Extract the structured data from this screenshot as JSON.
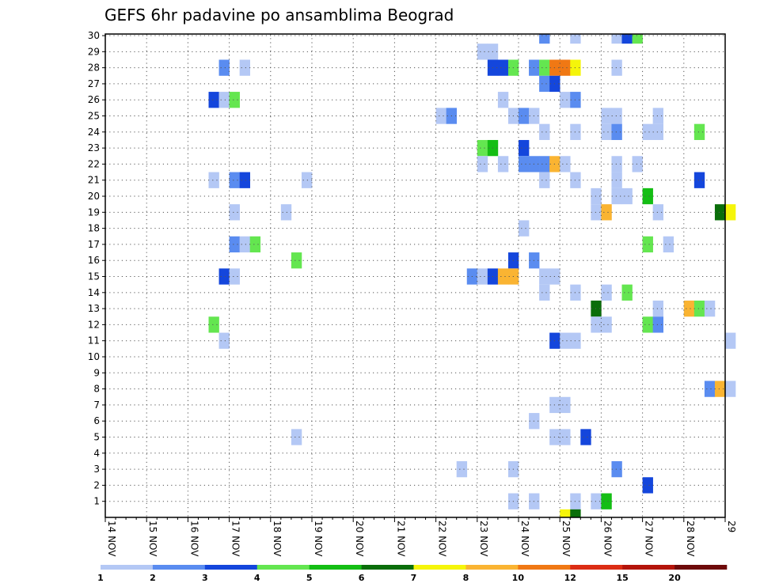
{
  "chart_data": {
    "type": "heatmap",
    "title": "GEFS 6hr padavine po ansamblima Beograd",
    "x_ticks": [
      "14 NOV",
      "15 NOV",
      "16 NOV",
      "17 NOV",
      "18 NOV",
      "19 NOV",
      "20 NOV",
      "21 NOV",
      "22 NOV",
      "23 NOV",
      "24 NOV",
      "25 NOV",
      "26 NOV",
      "27 NOV",
      "28 NOV",
      "29"
    ],
    "xlim": [
      "14 NOV 00Z",
      "29 NOV 00Z"
    ],
    "x_step_hours": 6,
    "y_ticks": [
      1,
      2,
      3,
      4,
      5,
      6,
      7,
      8,
      9,
      10,
      11,
      12,
      13,
      14,
      15,
      16,
      17,
      18,
      19,
      20,
      21,
      22,
      23,
      24,
      25,
      26,
      27,
      28,
      29,
      30
    ],
    "ylim": [
      0,
      30
    ],
    "grid": "dotted",
    "colorbar": {
      "labels": [
        "1",
        "2",
        "3",
        "4",
        "5",
        "6",
        "7",
        "8",
        "10",
        "12",
        "15",
        "20"
      ],
      "colors": [
        "#b4c8f5",
        "#5a8cf0",
        "#1446dc",
        "#64e650",
        "#14be14",
        "#0a6e0a",
        "#f5f50a",
        "#fab432",
        "#f07814",
        "#dc2d14",
        "#b4140a",
        "#6e0a0a"
      ]
    },
    "cells": [
      [
        30,
        42,
        2
      ],
      [
        30,
        45,
        1
      ],
      [
        30,
        49,
        1
      ],
      [
        30,
        50,
        3
      ],
      [
        30,
        51,
        4
      ],
      [
        29,
        36,
        1
      ],
      [
        29,
        37,
        1
      ],
      [
        28,
        11,
        2
      ],
      [
        28,
        13,
        1
      ],
      [
        28,
        37,
        3
      ],
      [
        28,
        38,
        3
      ],
      [
        28,
        39,
        4
      ],
      [
        28,
        41,
        2
      ],
      [
        28,
        42,
        4
      ],
      [
        28,
        43,
        9
      ],
      [
        28,
        44,
        9
      ],
      [
        28,
        45,
        7
      ],
      [
        28,
        49,
        1
      ],
      [
        27,
        42,
        2
      ],
      [
        27,
        43,
        3
      ],
      [
        26,
        10,
        3
      ],
      [
        26,
        11,
        1
      ],
      [
        26,
        12,
        4
      ],
      [
        26,
        38,
        1
      ],
      [
        26,
        44,
        1
      ],
      [
        26,
        45,
        2
      ],
      [
        25,
        32,
        1
      ],
      [
        25,
        33,
        2
      ],
      [
        25,
        39,
        1
      ],
      [
        25,
        40,
        2
      ],
      [
        25,
        41,
        1
      ],
      [
        25,
        48,
        1
      ],
      [
        25,
        49,
        1
      ],
      [
        25,
        53,
        1
      ],
      [
        24,
        42,
        1
      ],
      [
        24,
        45,
        1
      ],
      [
        24,
        48,
        1
      ],
      [
        24,
        49,
        2
      ],
      [
        24,
        52,
        1
      ],
      [
        24,
        53,
        1
      ],
      [
        24,
        57,
        4
      ],
      [
        23,
        36,
        4
      ],
      [
        23,
        37,
        5
      ],
      [
        23,
        40,
        3
      ],
      [
        22,
        36,
        1
      ],
      [
        22,
        38,
        1
      ],
      [
        22,
        40,
        2
      ],
      [
        22,
        41,
        2
      ],
      [
        22,
        42,
        2
      ],
      [
        22,
        43,
        8
      ],
      [
        22,
        44,
        1
      ],
      [
        22,
        49,
        1
      ],
      [
        22,
        51,
        1
      ],
      [
        21,
        10,
        1
      ],
      [
        21,
        12,
        2
      ],
      [
        21,
        13,
        3
      ],
      [
        21,
        19,
        1
      ],
      [
        21,
        42,
        1
      ],
      [
        21,
        45,
        1
      ],
      [
        21,
        49,
        1
      ],
      [
        21,
        57,
        3
      ],
      [
        20,
        47,
        1
      ],
      [
        20,
        49,
        1
      ],
      [
        20,
        50,
        1
      ],
      [
        20,
        52,
        5
      ],
      [
        19,
        12,
        1
      ],
      [
        19,
        17,
        1
      ],
      [
        19,
        47,
        1
      ],
      [
        19,
        48,
        8
      ],
      [
        19,
        53,
        1
      ],
      [
        19,
        59,
        6
      ],
      [
        19,
        60,
        7
      ],
      [
        18,
        40,
        1
      ],
      [
        17,
        12,
        2
      ],
      [
        17,
        13,
        1
      ],
      [
        17,
        14,
        4
      ],
      [
        17,
        52,
        4
      ],
      [
        17,
        54,
        1
      ],
      [
        16,
        18,
        4
      ],
      [
        16,
        39,
        3
      ],
      [
        16,
        41,
        2
      ],
      [
        15,
        11,
        3
      ],
      [
        15,
        12,
        1
      ],
      [
        15,
        35,
        2
      ],
      [
        15,
        36,
        1
      ],
      [
        15,
        37,
        3
      ],
      [
        15,
        38,
        8
      ],
      [
        15,
        39,
        8
      ],
      [
        15,
        42,
        1
      ],
      [
        15,
        43,
        1
      ],
      [
        14,
        42,
        1
      ],
      [
        14,
        45,
        1
      ],
      [
        14,
        48,
        1
      ],
      [
        14,
        50,
        4
      ],
      [
        13,
        47,
        6
      ],
      [
        13,
        53,
        1
      ],
      [
        13,
        56,
        8
      ],
      [
        13,
        57,
        4
      ],
      [
        13,
        58,
        1
      ],
      [
        12,
        10,
        4
      ],
      [
        12,
        47,
        1
      ],
      [
        12,
        48,
        1
      ],
      [
        12,
        52,
        4
      ],
      [
        12,
        53,
        2
      ],
      [
        11,
        11,
        1
      ],
      [
        11,
        43,
        3
      ],
      [
        11,
        44,
        1
      ],
      [
        11,
        45,
        1
      ],
      [
        11,
        60,
        1
      ],
      [
        8,
        58,
        2
      ],
      [
        8,
        59,
        8
      ],
      [
        8,
        60,
        1
      ],
      [
        7,
        43,
        1
      ],
      [
        7,
        44,
        1
      ],
      [
        6,
        41,
        1
      ],
      [
        5,
        18,
        1
      ],
      [
        5,
        43,
        1
      ],
      [
        5,
        44,
        1
      ],
      [
        5,
        46,
        3
      ],
      [
        3,
        34,
        1
      ],
      [
        3,
        39,
        1
      ],
      [
        3,
        49,
        2
      ],
      [
        2,
        52,
        3
      ],
      [
        1,
        39,
        1
      ],
      [
        1,
        41,
        1
      ],
      [
        1,
        45,
        1
      ],
      [
        1,
        47,
        1
      ],
      [
        1,
        48,
        5
      ],
      [
        0,
        44,
        7
      ],
      [
        0,
        45,
        6
      ]
    ]
  }
}
